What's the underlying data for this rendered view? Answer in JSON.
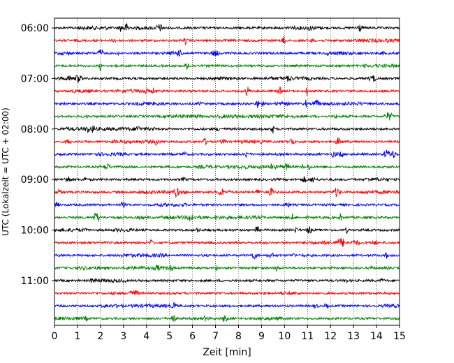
{
  "chart_data": {
    "type": "line",
    "title": "",
    "xlabel": "Zeit  [min]",
    "ylabel": "UTC (Lokalzeit = UTC + 02:00)",
    "xlim": [
      0,
      15
    ],
    "x_ticks": [
      "0",
      "1",
      "2",
      "3",
      "4",
      "5",
      "6",
      "7",
      "8",
      "9",
      "10",
      "11",
      "12",
      "13",
      "14",
      "15"
    ],
    "y_ticks": [
      "06:00",
      "07:00",
      "08:00",
      "09:00",
      "10:00",
      "11:00"
    ],
    "grid": "vertical dotted lines at each minute",
    "trace_colors": [
      "#000000",
      "#ff0000",
      "#0000ff",
      "#008000"
    ],
    "rows_per_hour": 4,
    "minutes_per_row": 15,
    "first_row": "06:00",
    "last_row": "11:45",
    "traces": [
      {
        "start": "06:00",
        "color": "#000000"
      },
      {
        "start": "06:15",
        "color": "#ff0000"
      },
      {
        "start": "06:30",
        "color": "#0000ff"
      },
      {
        "start": "06:45",
        "color": "#008000"
      },
      {
        "start": "07:00",
        "color": "#000000"
      },
      {
        "start": "07:15",
        "color": "#ff0000"
      },
      {
        "start": "07:30",
        "color": "#0000ff"
      },
      {
        "start": "07:45",
        "color": "#008000"
      },
      {
        "start": "08:00",
        "color": "#000000"
      },
      {
        "start": "08:15",
        "color": "#ff0000"
      },
      {
        "start": "08:30",
        "color": "#0000ff"
      },
      {
        "start": "08:45",
        "color": "#008000"
      },
      {
        "start": "09:00",
        "color": "#000000"
      },
      {
        "start": "09:15",
        "color": "#ff0000"
      },
      {
        "start": "09:30",
        "color": "#0000ff"
      },
      {
        "start": "09:45",
        "color": "#008000"
      },
      {
        "start": "10:00",
        "color": "#000000"
      },
      {
        "start": "10:15",
        "color": "#ff0000"
      },
      {
        "start": "10:30",
        "color": "#0000ff"
      },
      {
        "start": "10:45",
        "color": "#008000"
      },
      {
        "start": "11:00",
        "color": "#000000"
      },
      {
        "start": "11:15",
        "color": "#ff0000"
      },
      {
        "start": "11:30",
        "color": "#0000ff"
      },
      {
        "start": "11:45",
        "color": "#008000"
      }
    ]
  }
}
